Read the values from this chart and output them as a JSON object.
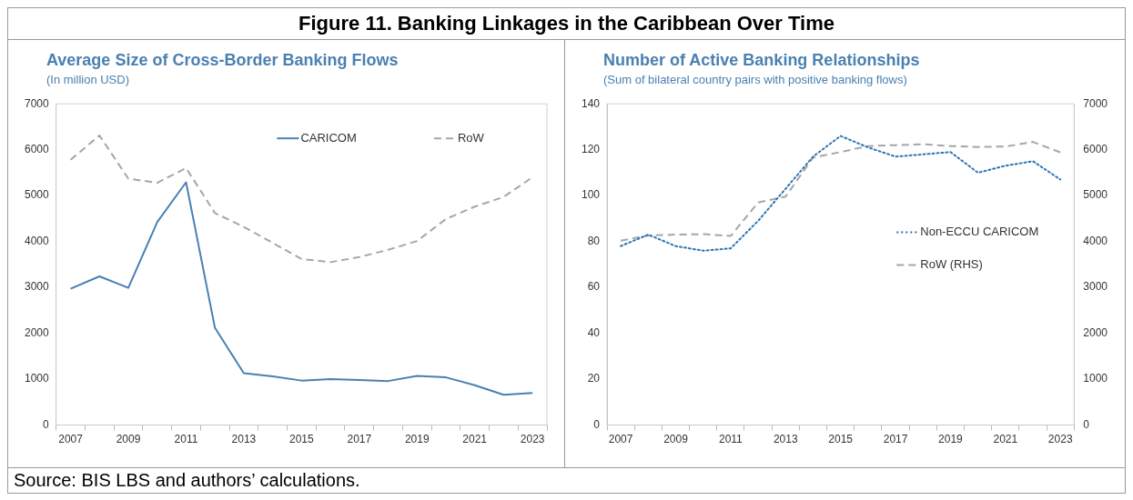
{
  "chart_data": [
    {
      "type": "line",
      "title": "Average Size of Cross-Border Banking Flows",
      "subtitle": "(In million USD)",
      "annotations": [
        "Figure 11. Banking Linkages in the Caribbean Over Time",
        "Source: BIS LBS and authors’ calculations."
      ],
      "categories": [
        "2007",
        null,
        "2009",
        null,
        "2011",
        null,
        "2013",
        null,
        "2015",
        null,
        "2017",
        null,
        "2019",
        null,
        "2021",
        null,
        "2023"
      ],
      "series": [
        {
          "name": "CARICOM",
          "color": "#4a80b2",
          "line_style": "solid",
          "values": [
            2970,
            3240,
            2990,
            4420,
            5290,
            2120,
            1130,
            1060,
            970,
            1000,
            980,
            960,
            1070,
            1040,
            870,
            660,
            700
          ]
        },
        {
          "name": "RoW",
          "color": "#a6a6a6",
          "line_style": "dashed",
          "values": [
            5780,
            6310,
            5370,
            5280,
            5600,
            4620,
            4320,
            3970,
            3620,
            3550,
            3660,
            3820,
            4010,
            4490,
            4760,
            4970,
            5400
          ]
        }
      ],
      "ylim": [
        0,
        7000
      ],
      "yticks": [
        0,
        1000,
        2000,
        3000,
        4000,
        5000,
        6000,
        7000
      ],
      "grid": false,
      "legend": "top right",
      "marker": "none"
    },
    {
      "type": "line",
      "title": "Number of Active Banking Relationships",
      "subtitle": "(Sum of bilateral country pairs with positive banking flows)",
      "categories": [
        "2007",
        null,
        "2009",
        null,
        "2011",
        null,
        "2013",
        null,
        "2015",
        null,
        "2017",
        null,
        "2019",
        null,
        "2021",
        null,
        "2023"
      ],
      "series": [
        {
          "name": "Non-ECCU CARICOM",
          "color": "#2e75b6",
          "line_style": "dotted",
          "values": [
            78,
            83,
            78,
            76,
            77,
            89,
            103,
            117,
            126,
            121,
            117,
            118,
            119,
            110,
            113,
            115,
            107
          ]
        },
        {
          "name": "RoW (RHS)",
          "color": "#a6a6a6",
          "line_style": "dashed",
          "axis": "y2",
          "values": [
            4020,
            4130,
            4150,
            4160,
            4120,
            4850,
            4980,
            5830,
            5950,
            6080,
            6100,
            6120,
            6080,
            6060,
            6070,
            6170,
            5940
          ]
        }
      ],
      "ylim": [
        0,
        140
      ],
      "yticks": [
        0,
        20,
        40,
        60,
        80,
        100,
        120,
        140
      ],
      "y2lim": [
        0,
        7000
      ],
      "y2ticks": [
        0,
        1000,
        2000,
        3000,
        4000,
        5000,
        6000,
        7000
      ],
      "grid": false,
      "legend": "right",
      "marker": "none"
    }
  ]
}
